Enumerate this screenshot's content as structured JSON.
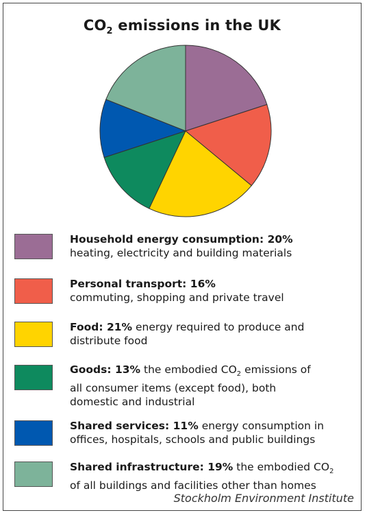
{
  "chart_data": {
    "type": "pie",
    "title": "CO2 emissions in the UK",
    "slices": [
      {
        "label": "Household energy consumption",
        "value": 20,
        "percent_text": "20%",
        "color": "#9b6d95",
        "description": "heating,  electricity and building materials"
      },
      {
        "label": "Personal transport",
        "value": 16,
        "percent_text": "16%",
        "color": "#f05e4a",
        "description": "commuting, shopping and private travel"
      },
      {
        "label": "Food",
        "value": 21,
        "percent_text": "21%",
        "color": "#ffd400",
        "description_lines": [
          "energy required to produce and",
          "distribute food"
        ]
      },
      {
        "label": "Goods",
        "value": 13,
        "percent_text": "13%",
        "color": "#0e8a5e",
        "description_lines": [
          "the embodied CO",
          "2",
          " emissions of",
          "all consumer items (except food), both",
          "domestic and industrial"
        ]
      },
      {
        "label": "Shared services",
        "value": 11,
        "percent_text": "11%",
        "color": "#0058b0",
        "description_lines": [
          "energy consumption in",
          "offices, hospitals, schools and public buildings"
        ]
      },
      {
        "label": "Shared infrastructure",
        "value": 19,
        "percent_text": "19%",
        "color": "#7db39a",
        "description_lines": [
          "the embodied CO",
          "2",
          "of all buildings and facilities other than homes"
        ]
      }
    ],
    "source": "Stockholm Environment Institute"
  },
  "title": {
    "prefix": "CO",
    "sub": "2",
    "suffix": " emissions in the UK"
  }
}
